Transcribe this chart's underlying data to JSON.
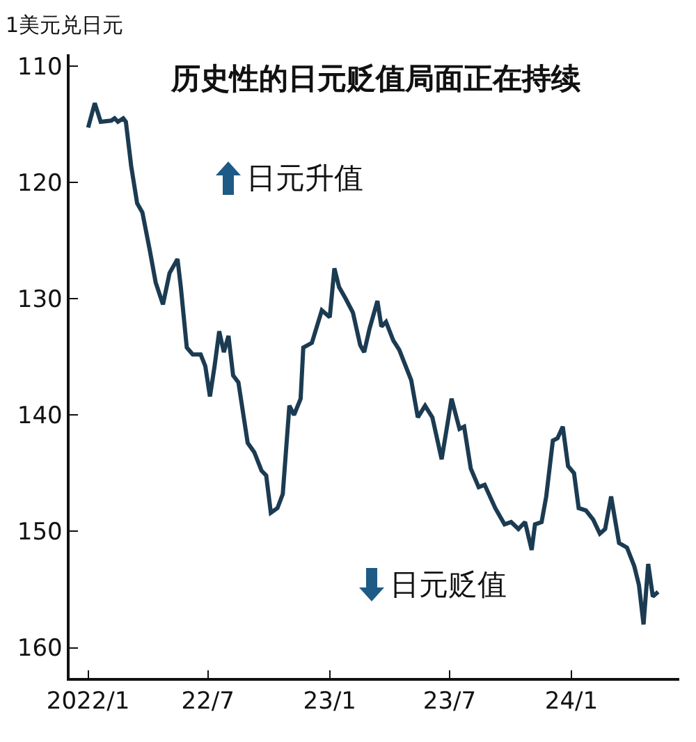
{
  "chart_data": {
    "type": "line",
    "title": "历史性的日元贬值局面正在持续",
    "ylabel": "1美元兑日元",
    "annotations": [
      "日元升值",
      "日元贬值"
    ],
    "x": [
      "2022-01-01",
      "2022-01-11",
      "2022-01-20",
      "2022-02-05",
      "2022-02-10",
      "2022-02-15",
      "2022-02-23",
      "2022-02-27",
      "2022-03-07",
      "2022-03-16",
      "2022-03-24",
      "2022-04-04",
      "2022-04-13",
      "2022-04-24",
      "2022-05-04",
      "2022-05-16",
      "2022-05-21",
      "2022-05-30",
      "2022-06-08",
      "2022-06-20",
      "2022-06-27",
      "2022-07-04",
      "2022-07-11",
      "2022-07-18",
      "2022-07-25",
      "2022-08-01",
      "2022-08-08",
      "2022-08-16",
      "2022-08-30",
      "2022-09-09",
      "2022-09-20",
      "2022-09-27",
      "2022-10-04",
      "2022-10-14",
      "2022-10-22",
      "2022-11-01",
      "2022-11-08",
      "2022-11-18",
      "2022-11-22",
      "2022-12-05",
      "2022-12-20",
      "2023-01-01",
      "2023-01-08",
      "2023-01-15",
      "2023-01-25",
      "2023-02-05",
      "2023-02-16",
      "2023-02-22",
      "2023-03-02",
      "2023-03-14",
      "2023-03-20",
      "2023-03-27",
      "2023-04-07",
      "2023-04-16",
      "2023-05-04",
      "2023-05-14",
      "2023-05-25",
      "2023-06-05",
      "2023-06-19",
      "2023-06-26",
      "2023-07-04",
      "2023-07-16",
      "2023-07-23",
      "2023-08-02",
      "2023-08-14",
      "2023-08-23",
      "2023-09-08",
      "2023-09-22",
      "2023-10-02",
      "2023-10-13",
      "2023-10-23",
      "2023-11-02",
      "2023-11-07",
      "2023-11-17",
      "2023-11-24",
      "2023-12-04",
      "2023-12-11",
      "2023-12-19",
      "2023-12-27",
      "2024-01-05",
      "2024-01-12",
      "2024-01-23",
      "2024-02-03",
      "2024-02-13",
      "2024-02-21",
      "2024-03-01",
      "2024-03-07",
      "2024-03-13",
      "2024-03-25",
      "2024-04-05",
      "2024-04-12",
      "2024-04-19",
      "2024-04-26",
      "2024-05-03",
      "2024-05-11"
    ],
    "series": [
      {
        "color": "#1b3b52",
        "values": [
          115.3,
          113.2,
          114.8,
          114.7,
          114.5,
          114.8,
          114.5,
          114.8,
          118.6,
          121.8,
          122.6,
          125.8,
          128.6,
          130.5,
          127.8,
          126.6,
          129.0,
          134.2,
          134.8,
          134.8,
          135.8,
          138.4,
          135.8,
          132.8,
          134.6,
          133.2,
          136.6,
          137.2,
          142.4,
          143.2,
          144.8,
          145.2,
          148.4,
          148.0,
          146.8,
          139.2,
          140.0,
          138.6,
          134.2,
          133.8,
          131.0,
          131.6,
          127.4,
          129.0,
          130.0,
          131.2,
          134.0,
          134.6,
          132.6,
          130.2,
          132.4,
          132.0,
          133.6,
          134.4,
          137.0,
          140.2,
          139.2,
          140.2,
          143.8,
          141.4,
          138.6,
          141.2,
          141.0,
          144.6,
          146.2,
          146.0,
          148.0,
          149.4,
          149.2,
          149.8,
          149.2,
          151.6,
          149.4,
          149.2,
          147.0,
          142.2,
          142.0,
          141.0,
          144.4,
          145.0,
          148.0,
          148.2,
          149.0,
          150.2,
          149.8,
          147.0,
          149.0,
          151.0,
          151.4,
          153.0,
          154.6,
          158.0,
          152.8,
          155.6,
          155.2
        ]
      }
    ],
    "xlim": [
      "2021-12-04",
      "2024-06-12"
    ],
    "xticks": [
      {
        "value": "2022-01-01",
        "label": "2022/1"
      },
      {
        "value": "2022-07-01",
        "label": "22/7"
      },
      {
        "value": "2023-01-01",
        "label": "23/1"
      },
      {
        "value": "2023-07-01",
        "label": "23/7"
      },
      {
        "value": "2024-01-01",
        "label": "24/1"
      }
    ],
    "ylim": [
      162.6,
      109
    ],
    "yticks": [
      110,
      120,
      130,
      140,
      150,
      160
    ],
    "grid": false,
    "marker": "none",
    "line_style": "solid"
  }
}
